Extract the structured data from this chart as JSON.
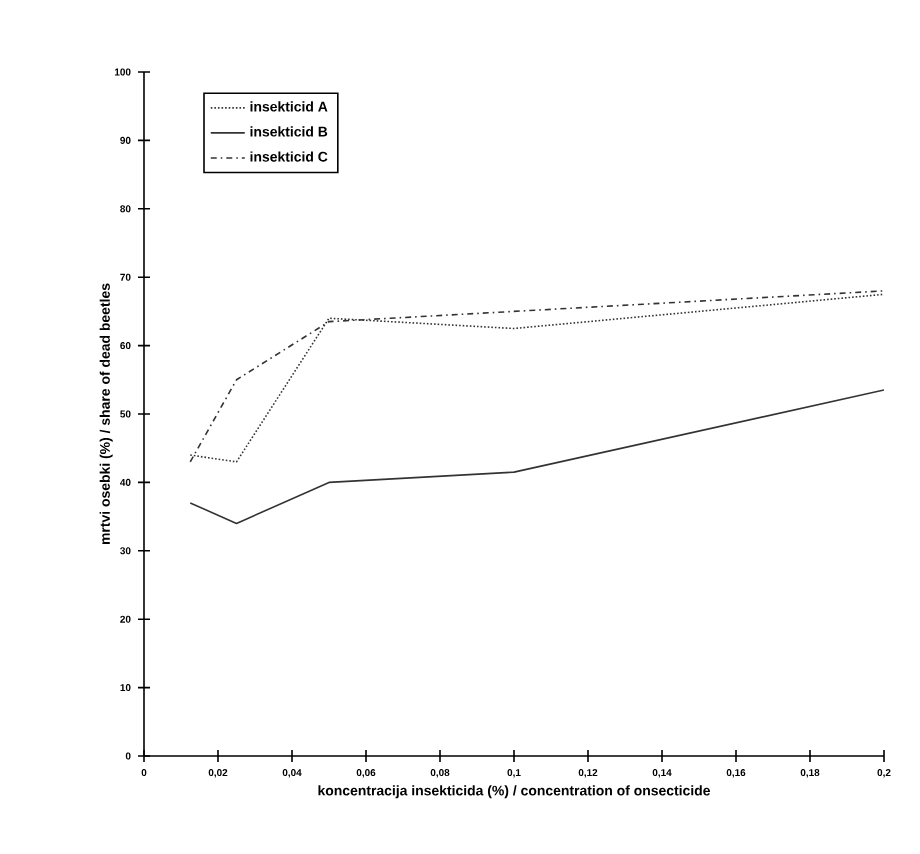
{
  "chart_data": {
    "type": "line",
    "xlabel": "koncentracija insekticida (%) / concentration of onsecticide",
    "ylabel": "mrtvi osebki (%) / share of dead beetles",
    "xlim": [
      0,
      0.2
    ],
    "ylim": [
      0,
      100
    ],
    "xticks": [
      0,
      {
        "value": 0.02,
        "label": "0,02"
      },
      {
        "value": 0.04,
        "label": "0,04"
      },
      {
        "value": 0.06,
        "label": "0,06"
      },
      {
        "value": 0.08,
        "label": "0,08"
      },
      {
        "value": 0.1,
        "label": "0,1"
      },
      {
        "value": 0.12,
        "label": "0,12"
      },
      {
        "value": 0.14,
        "label": "0,14"
      },
      {
        "value": 0.16,
        "label": "0,16"
      },
      {
        "value": 0.18,
        "label": "0,18"
      },
      {
        "value": 0.2,
        "label": "0,2"
      }
    ],
    "yticks": [
      0,
      10,
      20,
      30,
      40,
      50,
      60,
      70,
      80,
      90,
      100
    ],
    "x": [
      0.0125,
      0.025,
      0.05,
      0.1,
      0.2
    ],
    "legend": "top left",
    "grid": false,
    "marker": "none",
    "series": [
      {
        "name": "insekticid A",
        "color": "#333333",
        "line_style": "dotted",
        "values": [
          44,
          43,
          64,
          62.5,
          67.5
        ]
      },
      {
        "name": "insekticid  B",
        "color": "#333333",
        "line_style": "solid",
        "values": [
          37,
          34,
          40,
          41.5,
          53.5
        ]
      },
      {
        "name": "insekticid C",
        "color": "#333333",
        "line_style": "dashdot",
        "values": [
          43,
          55,
          63.5,
          65,
          68
        ]
      }
    ]
  }
}
